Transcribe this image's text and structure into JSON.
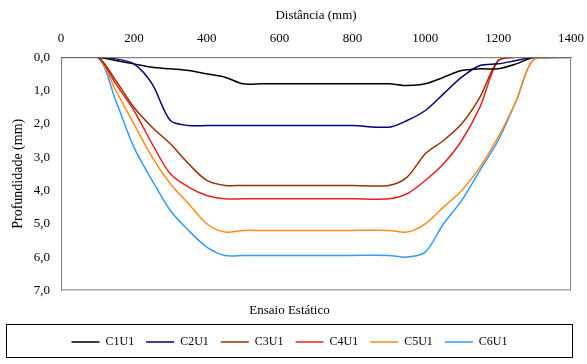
{
  "chart_data": {
    "type": "line",
    "xlabel": "Distância (mm)",
    "ylabel": "Profundidade (mm)",
    "subtitle": "Ensaio Estático",
    "x": [
      0,
      100,
      150,
      200,
      250,
      300,
      350,
      400,
      450,
      500,
      550,
      600,
      700,
      800,
      900,
      950,
      1000,
      1050,
      1100,
      1150,
      1200,
      1250,
      1300,
      1400
    ],
    "series": [
      {
        "name": "C1U1",
        "color": "#000000",
        "values": [
          0,
          0,
          0.1,
          0.2,
          0.3,
          0.35,
          0.4,
          0.5,
          0.6,
          0.8,
          0.8,
          0.8,
          0.8,
          0.8,
          0.8,
          0.85,
          0.8,
          0.6,
          0.4,
          0.35,
          0.35,
          0.2,
          0,
          0
        ]
      },
      {
        "name": "C2U1",
        "color": "#000080",
        "values": [
          0,
          0,
          0.05,
          0.2,
          0.8,
          1.9,
          2.05,
          2.05,
          2.05,
          2.05,
          2.05,
          2.05,
          2.05,
          2.05,
          2.1,
          1.9,
          1.6,
          1.1,
          0.6,
          0.25,
          0.2,
          0.1,
          0,
          0
        ]
      },
      {
        "name": "C3U1",
        "color": "#993300",
        "values": [
          0,
          0,
          0.7,
          1.5,
          2.1,
          2.6,
          3.2,
          3.7,
          3.85,
          3.85,
          3.85,
          3.85,
          3.85,
          3.85,
          3.85,
          3.6,
          2.9,
          2.5,
          2.0,
          1.2,
          0.1,
          0,
          0,
          0
        ]
      },
      {
        "name": "C4U1",
        "color": "#e8201f",
        "values": [
          0,
          0,
          0.8,
          1.6,
          2.6,
          3.5,
          3.9,
          4.15,
          4.25,
          4.25,
          4.25,
          4.25,
          4.25,
          4.25,
          4.25,
          4.1,
          3.7,
          3.2,
          2.5,
          1.5,
          0.1,
          0,
          0,
          0
        ]
      },
      {
        "name": "C5U1",
        "color": "#ff8c1a",
        "values": [
          0,
          0,
          1.0,
          2.0,
          3.0,
          3.8,
          4.4,
          5.0,
          5.25,
          5.2,
          5.2,
          5.2,
          5.2,
          5.2,
          5.2,
          5.25,
          5.0,
          4.5,
          4.0,
          3.3,
          2.4,
          1.3,
          0.05,
          0
        ]
      },
      {
        "name": "C6U1",
        "color": "#3399ff",
        "values": [
          0,
          0,
          1.3,
          2.7,
          3.7,
          4.6,
          5.2,
          5.7,
          5.95,
          5.95,
          5.95,
          5.95,
          5.95,
          5.95,
          5.95,
          6.0,
          5.85,
          5.0,
          4.3,
          3.4,
          2.5,
          1.3,
          0.05,
          0
        ]
      }
    ],
    "xlim": [
      0,
      1400
    ],
    "xticks": [
      0,
      200,
      400,
      600,
      800,
      1000,
      1200,
      1400
    ],
    "ylim": [
      7,
      0
    ],
    "yticks": [
      {
        "value": 0,
        "label": "0,0"
      },
      {
        "value": 1,
        "label": "1,0"
      },
      {
        "value": 2,
        "label": "2,0"
      },
      {
        "value": 3,
        "label": "3,0"
      },
      {
        "value": 4,
        "label": "4,0"
      },
      {
        "value": 5,
        "label": "5,0"
      },
      {
        "value": 6,
        "label": "6,0"
      },
      {
        "value": 7,
        "label": "7,0"
      }
    ],
    "grid": false,
    "legend": "bottom"
  }
}
